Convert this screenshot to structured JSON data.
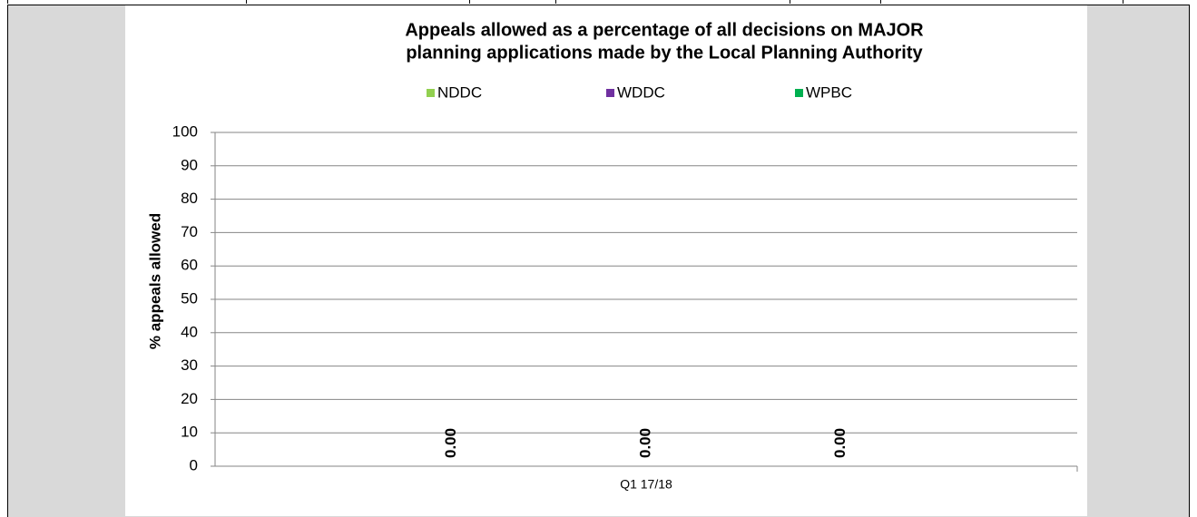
{
  "chart_data": {
    "type": "bar",
    "title": [
      "Appeals allowed as a percentage of all decisions on MAJOR",
      "planning applications made by the Local Planning Authority"
    ],
    "ylabel": "% appeals allowed",
    "categories": [
      "Q1 17/18"
    ],
    "series": [
      {
        "name": "NDDC",
        "color": "#92d050",
        "values": [
          0
        ],
        "value_labels": [
          "0.00"
        ]
      },
      {
        "name": "WDDC",
        "color": "#7030a0",
        "values": [
          0
        ],
        "value_labels": [
          "0.00"
        ]
      },
      {
        "name": "WPBC",
        "color": "#00b050",
        "values": [
          0
        ],
        "value_labels": [
          "0.00"
        ]
      }
    ],
    "ylim": [
      0,
      100
    ],
    "yticks": [
      0,
      10,
      20,
      30,
      40,
      50,
      60,
      70,
      80,
      90,
      100
    ],
    "grid": true,
    "legend": "top"
  }
}
